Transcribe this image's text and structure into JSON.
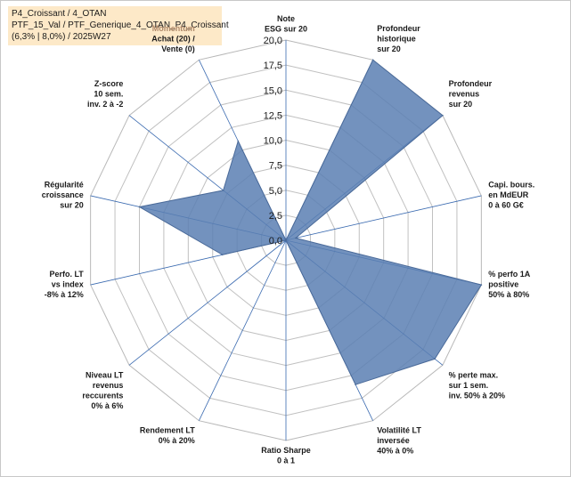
{
  "info": {
    "line1": "P4_Croissant / 4_OTAN",
    "line2": "PTF_15_Val / PTF_Generique_4_OTAN_P4_Croissant",
    "line3": "(6,3% | 8,0%) / 2025W27"
  },
  "chart_data": {
    "type": "radar",
    "rlim": [
      0,
      20
    ],
    "ticks": [
      "0,0",
      "2,5",
      "5,0",
      "7,5",
      "10,0",
      "12,5",
      "15,0",
      "17,5",
      "20,0"
    ],
    "grid": true,
    "categories": [
      [
        "Note",
        "ESG sur 20"
      ],
      [
        "Profondeur",
        "historique",
        "sur 20"
      ],
      [
        "Profondeur",
        "revenus",
        "sur 20"
      ],
      [
        "Capi. bours.",
        "en MdEUR",
        "0 à 60 G€"
      ],
      [
        "% perfo 1A",
        "positive",
        "50% à 80%"
      ],
      [
        "% perte max.",
        "sur 1 sem.",
        "inv. 50% à 20%"
      ],
      [
        "Volatilité LT",
        "inversée",
        "40% à 0%"
      ],
      [
        "Ratio Sharpe",
        "0 à 1"
      ],
      [
        "Rendement LT",
        "0% à 20%"
      ],
      [
        "Niveau LT",
        "revenus",
        "reccurents",
        "0% à 6%"
      ],
      [
        "Perfo. LT",
        "vs index",
        "-8% à 12%"
      ],
      [
        "Régularité",
        "croissance",
        "sur 20"
      ],
      [
        "Z-score",
        "10 sem.",
        "inv. 2 à -2"
      ],
      [
        "Momentum",
        "Achat (20) /",
        "Vente (0)"
      ]
    ],
    "series": [
      {
        "values": [
          0.0,
          20.0,
          20.0,
          1.0,
          20.0,
          19.0,
          16.0,
          0.0,
          0.0,
          0.0,
          6.5,
          15.0,
          8.0,
          11.0
        ],
        "color": "#5b7fb3"
      }
    ],
    "colors": {
      "fill": "#5b7fb3",
      "stroke": "#4a6a99",
      "grid": "#c0c0c0",
      "axis": "#3a6ab0",
      "accent_label": "#b08a6a"
    }
  }
}
